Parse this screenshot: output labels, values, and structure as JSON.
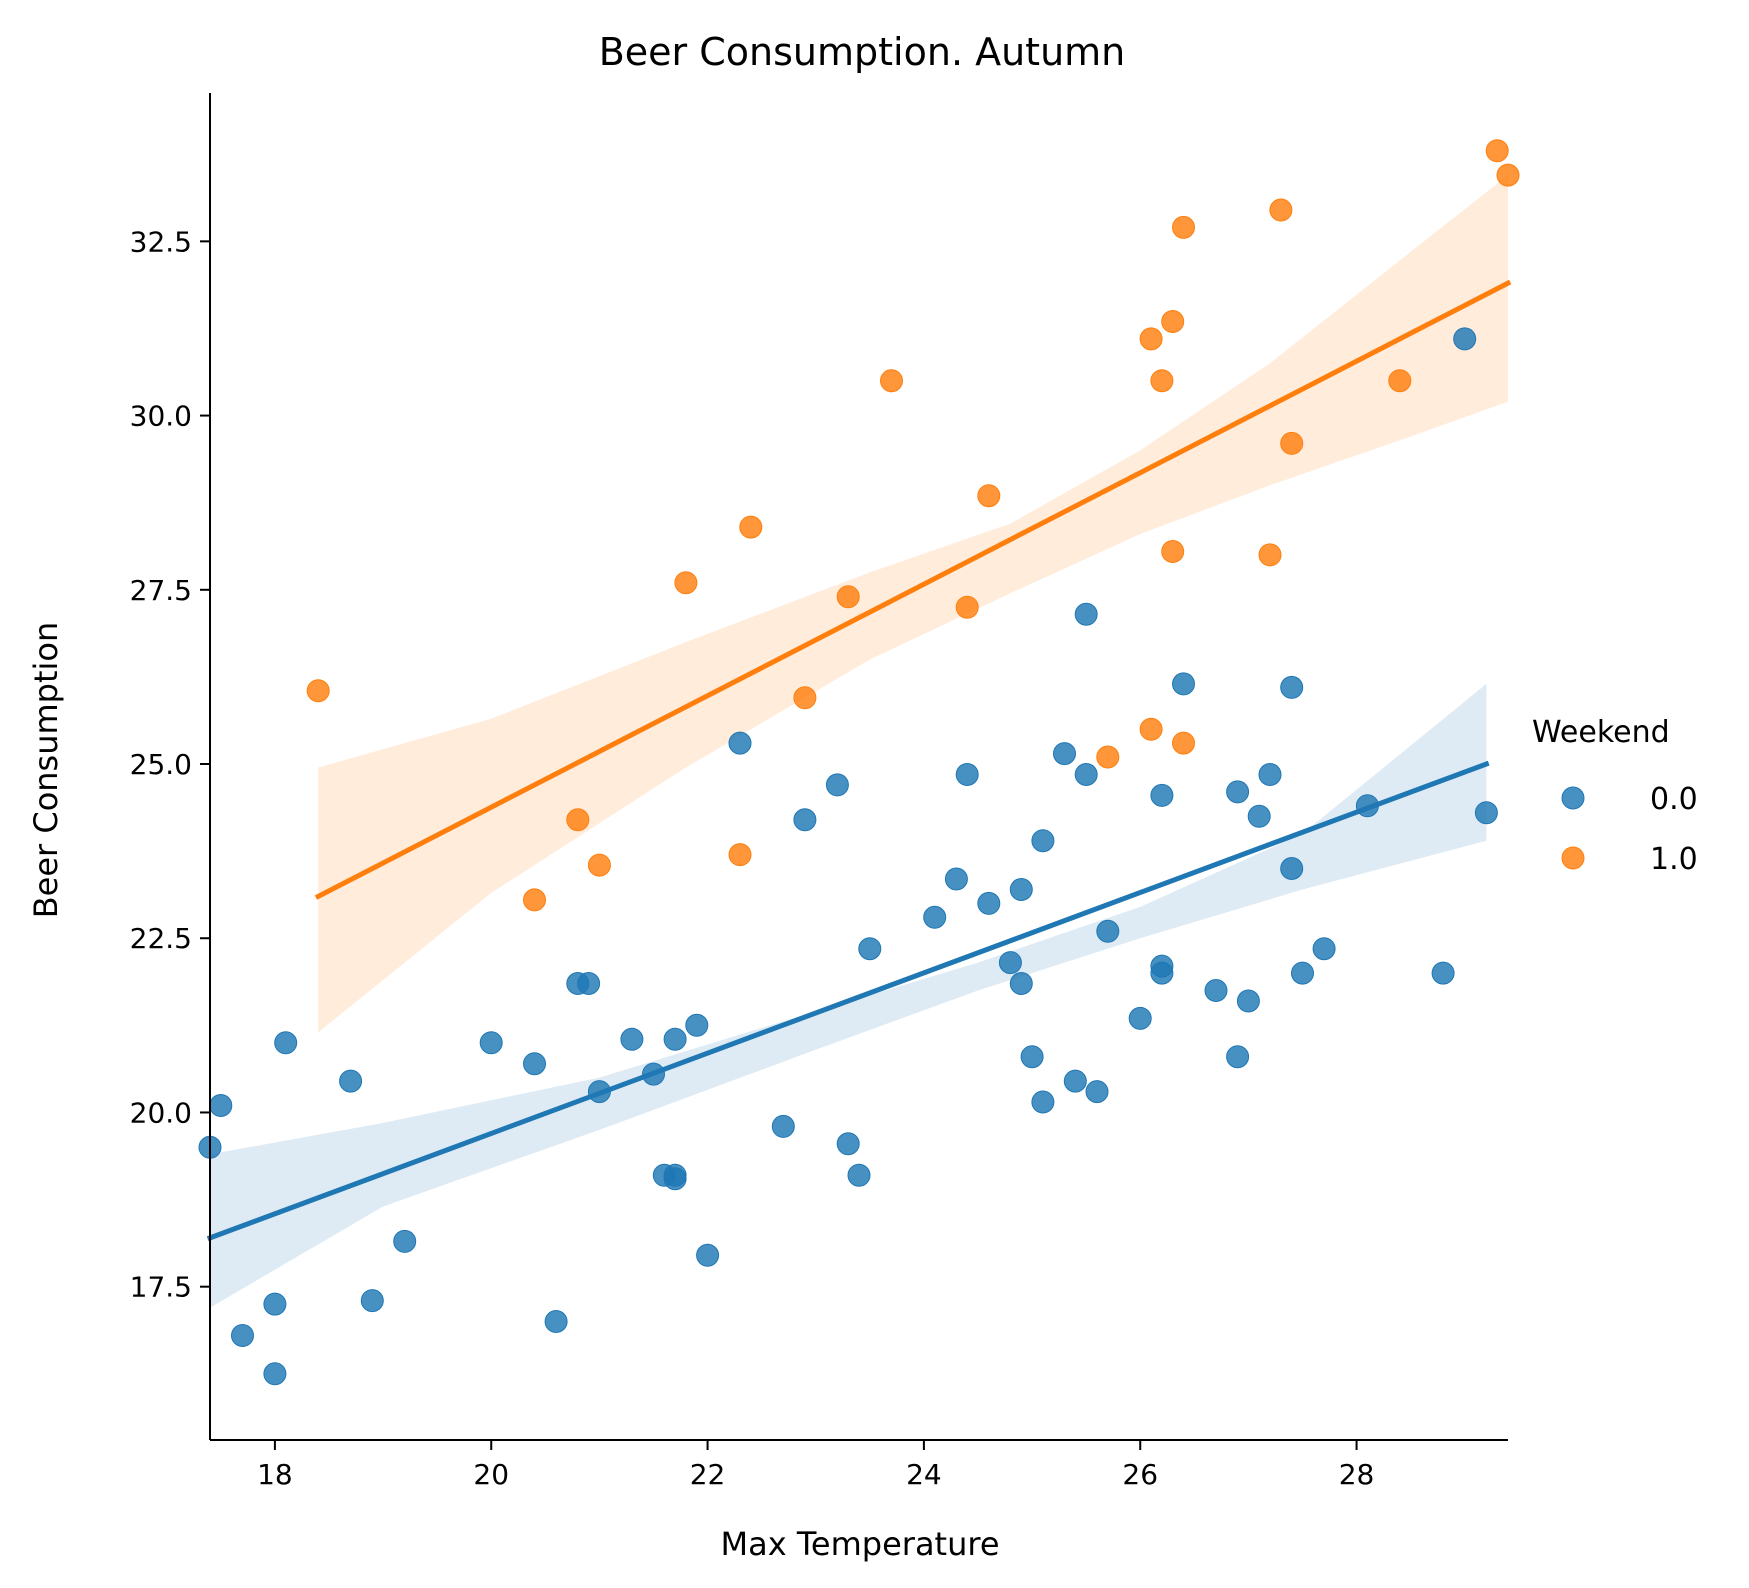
{
  "chart_data": {
    "type": "scatter",
    "title": "Beer Consumption. Autumn",
    "xlabel": "Max Temperature",
    "ylabel": "Beer Consumption",
    "xlim": [
      17.4,
      29.4
    ],
    "ylim": [
      15.3,
      34.6
    ],
    "xticks": [
      18,
      20,
      22,
      24,
      26,
      28
    ],
    "xtick_labels": [
      "18",
      "20",
      "22",
      "24",
      "26",
      "28"
    ],
    "yticks": [
      17.5,
      20.0,
      22.5,
      25.0,
      27.5,
      30.0,
      32.5
    ],
    "ytick_labels": [
      "17.5",
      "20.0",
      "22.5",
      "25.0",
      "27.5",
      "30.0",
      "32.5"
    ],
    "grid": false,
    "legend": {
      "title": "Weekend",
      "placement": "right"
    },
    "series": [
      {
        "name": "0.0",
        "color": "#1f77b4",
        "x": [
          17.4,
          17.5,
          17.7,
          18.0,
          18.0,
          18.1,
          18.7,
          18.9,
          19.2,
          20.0,
          20.4,
          20.6,
          20.8,
          20.9,
          21.0,
          21.3,
          21.5,
          21.6,
          21.7,
          21.7,
          21.7,
          21.9,
          22.0,
          22.3,
          22.7,
          22.9,
          23.2,
          23.3,
          23.4,
          23.5,
          24.1,
          24.3,
          24.4,
          24.6,
          24.8,
          24.9,
          24.9,
          25.0,
          25.1,
          25.1,
          25.3,
          25.4,
          25.5,
          25.5,
          25.6,
          25.7,
          26.0,
          26.2,
          26.2,
          26.2,
          26.4,
          26.7,
          26.9,
          26.9,
          27.0,
          27.1,
          27.2,
          27.4,
          27.4,
          27.5,
          27.7,
          28.1,
          28.8,
          29.0,
          29.2
        ],
        "y": [
          19.5,
          20.1,
          16.8,
          17.25,
          16.25,
          21.0,
          20.45,
          17.3,
          18.15,
          21.0,
          20.7,
          17.0,
          21.85,
          21.85,
          20.3,
          21.05,
          20.55,
          19.1,
          19.05,
          19.1,
          21.05,
          21.25,
          17.95,
          25.3,
          19.8,
          24.2,
          24.7,
          19.55,
          19.1,
          22.35,
          22.8,
          23.35,
          24.85,
          23.0,
          22.15,
          23.2,
          21.85,
          20.8,
          23.9,
          20.15,
          25.15,
          20.45,
          27.15,
          24.85,
          20.3,
          22.6,
          21.35,
          22.1,
          22.0,
          24.55,
          26.15,
          21.75,
          24.6,
          20.8,
          21.6,
          24.25,
          24.85,
          26.1,
          23.5,
          22.0,
          22.35,
          24.4,
          22.0,
          31.1,
          24.3
        ],
        "regression": {
          "x": [
            17.4,
            29.2
          ],
          "y": [
            18.2,
            25.0
          ]
        },
        "ci_band": {
          "x": [
            17.4,
            19.0,
            21.0,
            23.0,
            24.5,
            26.0,
            27.5,
            29.2
          ],
          "lower": [
            17.2,
            18.65,
            19.75,
            20.9,
            21.75,
            22.5,
            23.2,
            23.9
          ],
          "upper": [
            19.4,
            19.85,
            20.5,
            21.45,
            22.15,
            22.95,
            24.0,
            26.15
          ]
        }
      },
      {
        "name": "1.0",
        "color": "#ff7f0e",
        "x": [
          18.4,
          20.4,
          20.8,
          21.0,
          21.8,
          22.3,
          22.4,
          22.9,
          23.3,
          23.7,
          24.4,
          24.6,
          25.7,
          26.1,
          26.1,
          26.2,
          26.3,
          26.3,
          26.4,
          26.4,
          27.2,
          27.3,
          27.4,
          28.4,
          29.3,
          29.4
        ],
        "y": [
          26.05,
          23.05,
          24.2,
          23.55,
          27.6,
          23.7,
          28.4,
          25.95,
          27.4,
          30.5,
          27.25,
          28.85,
          25.1,
          31.1,
          25.5,
          30.5,
          31.35,
          28.05,
          32.7,
          25.3,
          28.0,
          32.95,
          29.6,
          30.5,
          33.8,
          33.45
        ],
        "regression": {
          "x": [
            18.4,
            29.4
          ],
          "y": [
            23.1,
            31.9
          ]
        },
        "ci_band": {
          "x": [
            18.4,
            20.0,
            21.8,
            23.5,
            24.8,
            26.0,
            27.2,
            28.5,
            29.4
          ],
          "lower": [
            21.15,
            23.15,
            24.95,
            26.5,
            27.45,
            28.3,
            29.0,
            29.7,
            30.2
          ],
          "upper": [
            24.95,
            25.65,
            26.75,
            27.75,
            28.45,
            29.5,
            30.75,
            32.35,
            33.45
          ]
        }
      }
    ]
  }
}
